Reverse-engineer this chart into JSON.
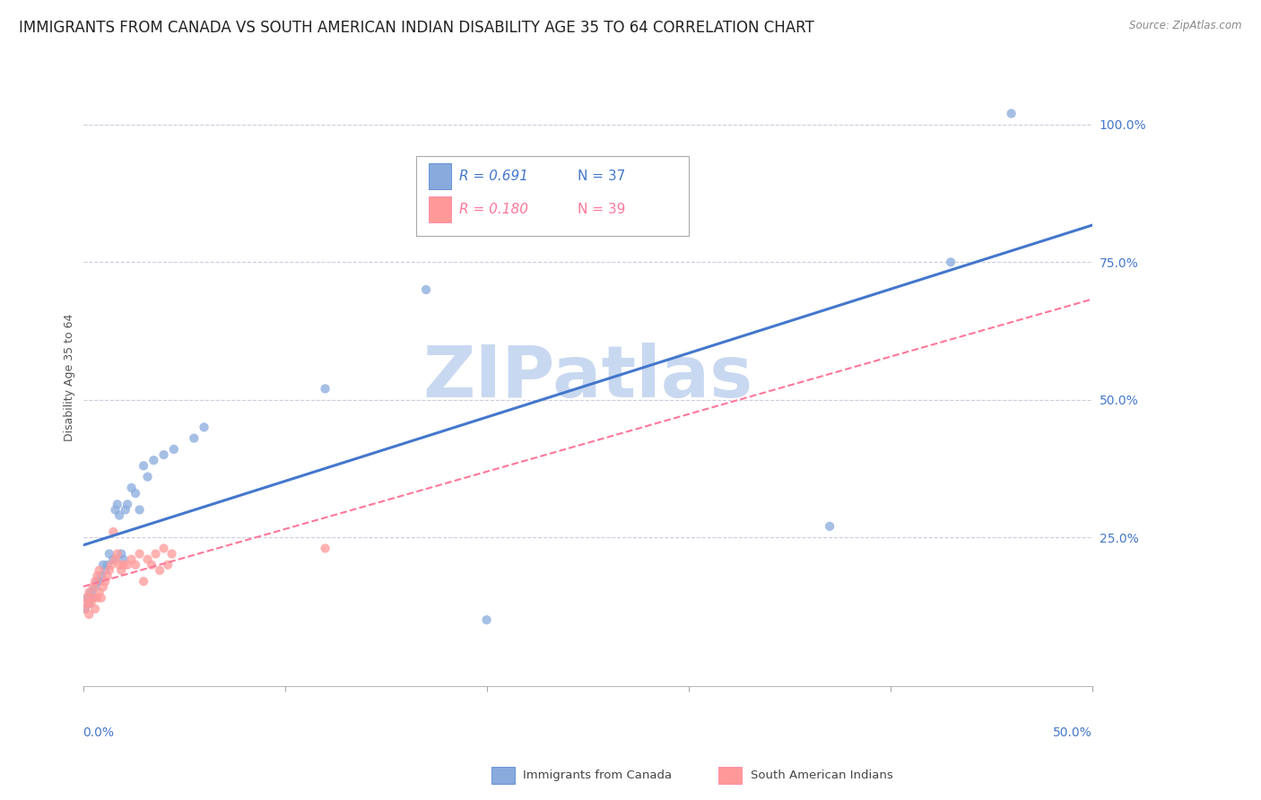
{
  "title": "IMMIGRANTS FROM CANADA VS SOUTH AMERICAN INDIAN DISABILITY AGE 35 TO 64 CORRELATION CHART",
  "source": "Source: ZipAtlas.com",
  "ylabel": "Disability Age 35 to 64",
  "ytick_labels": [
    "100.0%",
    "75.0%",
    "50.0%",
    "25.0%"
  ],
  "ytick_values": [
    1.0,
    0.75,
    0.5,
    0.25
  ],
  "xlim": [
    0.0,
    0.5
  ],
  "ylim": [
    -0.02,
    1.1
  ],
  "legend_canada_r": "R = 0.691",
  "legend_canada_n": "N = 37",
  "legend_sam_r": "R = 0.180",
  "legend_sam_n": "N = 39",
  "color_canada": "#88AADD",
  "color_sam": "#FF9999",
  "color_canada_line": "#4477CC",
  "color_sam_line": "#FF7799",
  "watermark_text": "ZIPatlas",
  "watermark_color": "#C8D8F0",
  "background_color": "#FFFFFF",
  "grid_color": "#CCCCDD",
  "title_fontsize": 12,
  "axis_label_fontsize": 9,
  "tick_fontsize": 10,
  "canada_x": [
    0.001,
    0.002,
    0.003,
    0.004,
    0.005,
    0.006,
    0.007,
    0.008,
    0.009,
    0.01,
    0.011,
    0.012,
    0.013,
    0.015,
    0.016,
    0.017,
    0.018,
    0.019,
    0.02,
    0.021,
    0.022,
    0.024,
    0.026,
    0.028,
    0.03,
    0.032,
    0.035,
    0.04,
    0.045,
    0.055,
    0.06,
    0.12,
    0.17,
    0.2,
    0.37,
    0.43,
    0.46
  ],
  "canada_y": [
    0.12,
    0.14,
    0.13,
    0.15,
    0.14,
    0.16,
    0.17,
    0.17,
    0.18,
    0.2,
    0.19,
    0.2,
    0.22,
    0.21,
    0.3,
    0.31,
    0.29,
    0.22,
    0.21,
    0.3,
    0.31,
    0.34,
    0.33,
    0.3,
    0.38,
    0.36,
    0.39,
    0.4,
    0.41,
    0.43,
    0.45,
    0.52,
    0.7,
    0.1,
    0.27,
    0.75,
    1.02
  ],
  "sam_x": [
    0.001,
    0.002,
    0.002,
    0.003,
    0.003,
    0.004,
    0.005,
    0.005,
    0.006,
    0.006,
    0.007,
    0.007,
    0.008,
    0.008,
    0.009,
    0.01,
    0.011,
    0.012,
    0.013,
    0.014,
    0.015,
    0.016,
    0.017,
    0.018,
    0.019,
    0.02,
    0.022,
    0.024,
    0.026,
    0.028,
    0.03,
    0.032,
    0.034,
    0.036,
    0.038,
    0.04,
    0.042,
    0.044,
    0.12
  ],
  "sam_y": [
    0.12,
    0.13,
    0.14,
    0.11,
    0.15,
    0.13,
    0.14,
    0.16,
    0.12,
    0.17,
    0.14,
    0.18,
    0.15,
    0.19,
    0.14,
    0.16,
    0.17,
    0.18,
    0.19,
    0.2,
    0.26,
    0.21,
    0.22,
    0.2,
    0.19,
    0.2,
    0.2,
    0.21,
    0.2,
    0.22,
    0.17,
    0.21,
    0.2,
    0.22,
    0.19,
    0.23,
    0.2,
    0.22,
    0.23
  ]
}
